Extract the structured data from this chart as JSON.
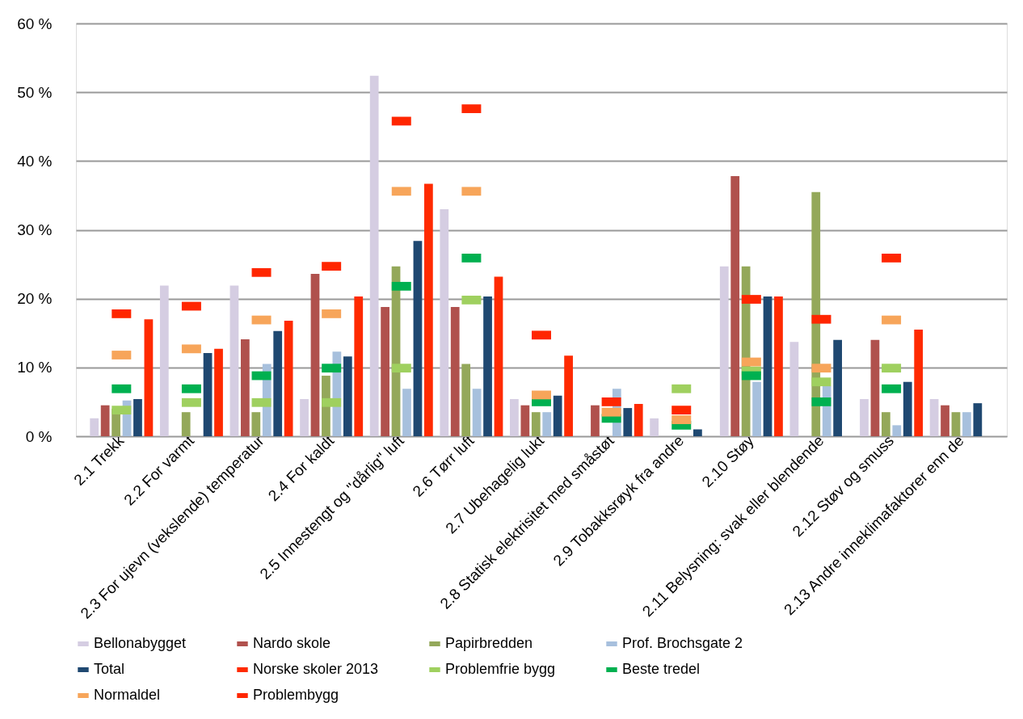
{
  "chart_data": {
    "type": "bar",
    "categories": [
      "2.1 Trekk",
      "2.2 For varmt",
      "2.3 For ujevn (vekslende) temperatur",
      "2.4 For kaldt",
      "2.5 Innestengt og \"dårlig\" luft",
      "2.6 Tørr luft",
      "2.7 Ubehagelig lukt",
      "2.8 Statisk elektrisitet med småstøt",
      "2.9 Tobakksrøyk fra andre",
      "2.10 Støy",
      "2.11 Belysning: svak eller blendende",
      "2.12 Støv og smuss",
      "2.13 Andre inneklimafaktorer enn de"
    ],
    "ylim": [
      0,
      60
    ],
    "yticks": [
      {
        "value": 0,
        "label": "0 %"
      },
      {
        "value": 10,
        "label": "10 %"
      },
      {
        "value": 20,
        "label": "20 %"
      },
      {
        "value": 30,
        "label": "30 %"
      },
      {
        "value": 40,
        "label": "40 %"
      },
      {
        "value": 50,
        "label": "50 %"
      },
      {
        "value": 60,
        "label": "60 %"
      }
    ],
    "grid": "y",
    "legend": "bottom",
    "series": [
      {
        "name": "Bellonabygget",
        "color": "#d5cde2",
        "values": [
          2.6,
          21.9,
          21.9,
          5.4,
          52.4,
          33,
          5.4,
          null,
          2.6,
          24.7,
          13.7,
          5.4,
          5.4
        ]
      },
      {
        "name": "Nardo skole",
        "color": "#b0514d",
        "values": [
          4.5,
          null,
          14.1,
          23.6,
          18.8,
          18.8,
          4.5,
          4.5,
          null,
          37.8,
          null,
          14,
          4.5
        ]
      },
      {
        "name": "Papirbredden",
        "color": "#94a85a",
        "values": [
          4,
          3.5,
          3.5,
          8.8,
          24.7,
          10.5,
          3.5,
          null,
          null,
          24.7,
          35.5,
          3.5,
          3.5
        ]
      },
      {
        "name": "Prof. Brochsgate 2",
        "color": "#a7c0dd",
        "values": [
          5.2,
          null,
          10.5,
          12.3,
          6.9,
          6.9,
          3.5,
          6.9,
          null,
          7.9,
          7.3,
          1.6,
          3.5
        ]
      },
      {
        "name": "Total",
        "color": "#1f4871",
        "values": [
          5.4,
          12.1,
          15.3,
          11.6,
          28.4,
          20.3,
          5.9,
          4.1,
          1,
          20.3,
          14,
          7.9,
          4.8
        ]
      },
      {
        "name": "Norske skoler 2013",
        "color": "#ff2a00",
        "values": [
          17,
          12.7,
          16.8,
          20.3,
          36.7,
          23.2,
          11.7,
          4.7,
          null,
          20.3,
          null,
          15.5,
          null
        ]
      },
      {
        "name": "Problemfrie bygg",
        "type": "scatter",
        "color": "#9fd05f",
        "values": [
          3.8,
          4.9,
          4.9,
          4.9,
          9.9,
          19.8,
          null,
          null,
          6.9,
          9.5,
          7.9,
          9.9,
          null
        ]
      },
      {
        "name": "Beste tredel",
        "type": "scatter",
        "color": "#00b050",
        "values": [
          6.9,
          6.9,
          8.8,
          9.9,
          21.8,
          25.9,
          5,
          2.6,
          1.6,
          8.8,
          5,
          6.9,
          null
        ]
      },
      {
        "name": "Normaldel",
        "type": "scatter",
        "color": "#f7a55a",
        "values": [
          11.8,
          12.7,
          16.9,
          17.8,
          35.6,
          35.6,
          6,
          3.5,
          2.4,
          10.8,
          9.9,
          16.9,
          null
        ]
      },
      {
        "name": "Problembygg",
        "type": "scatter",
        "color": "#ff2600",
        "values": [
          17.8,
          18.9,
          23.8,
          24.7,
          45.8,
          47.6,
          14.7,
          5,
          3.8,
          19.9,
          17,
          25.9,
          null
        ]
      }
    ]
  }
}
